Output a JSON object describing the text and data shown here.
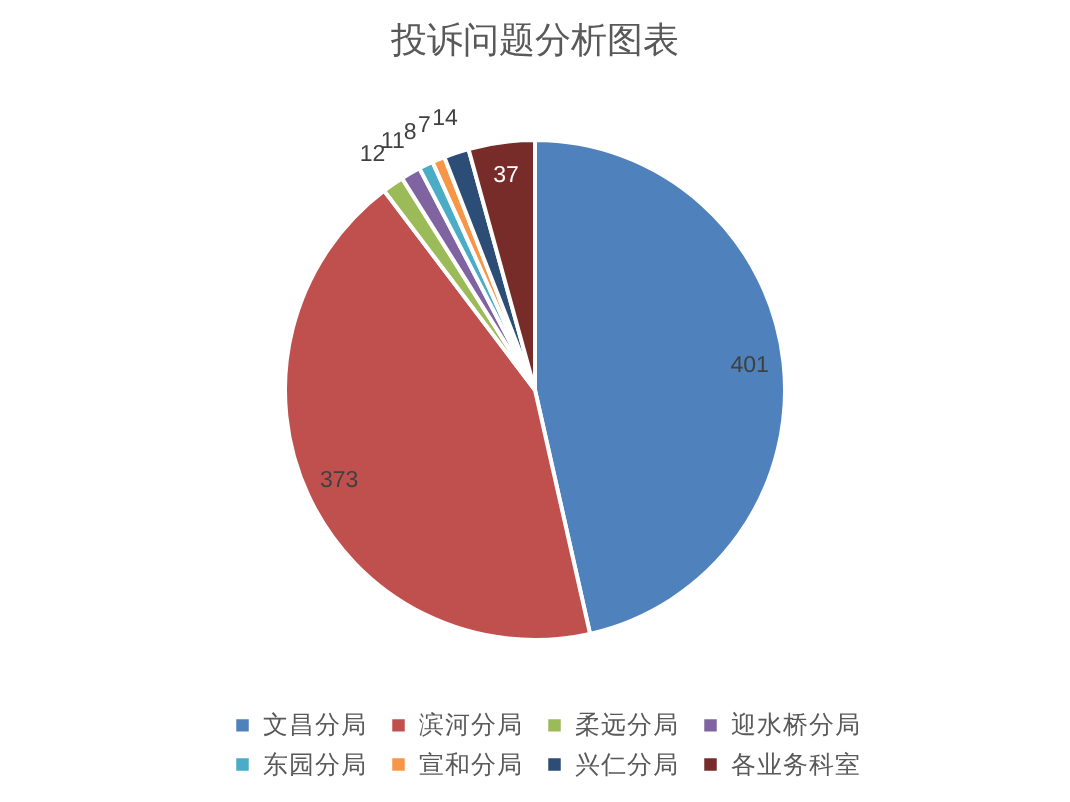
{
  "chart_data": {
    "type": "pie",
    "title": "投诉问题分析图表",
    "categories": [
      "文昌分局",
      "滨河分局",
      "柔远分局",
      "迎水桥分局",
      "东园分局",
      "宣和分局",
      "兴仁分局",
      "各业务科室"
    ],
    "values": [
      401,
      373,
      12,
      11,
      8,
      7,
      14,
      37
    ],
    "colors": [
      "#4f81bd",
      "#c0504d",
      "#9bbb59",
      "#8064a2",
      "#4bacc6",
      "#f79646",
      "#2c4d75",
      "#772c2a"
    ],
    "data_labels": true,
    "legend": "bottom"
  }
}
